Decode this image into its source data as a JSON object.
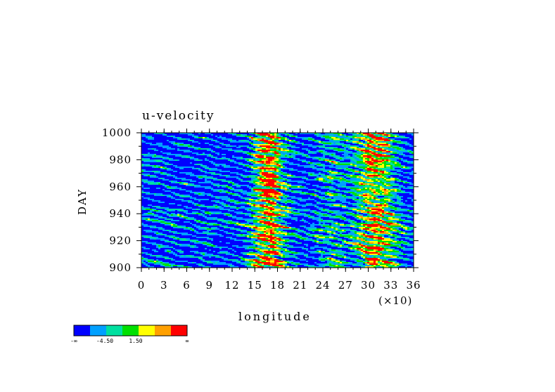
{
  "chart_data": {
    "type": "heatmap",
    "title": "u-velocity",
    "xlabel": "longitude",
    "ylabel": "DAY",
    "x_multiplier_label": "(×10)",
    "xlim": [
      0,
      36
    ],
    "ylim": [
      900,
      1000
    ],
    "x_ticks": [
      "0",
      "3",
      "6",
      "9",
      "12",
      "15",
      "18",
      "21",
      "24",
      "27",
      "30",
      "33",
      "36"
    ],
    "y_ticks": [
      "900",
      "920",
      "940",
      "960",
      "980",
      "1000"
    ],
    "colorbar": {
      "colors": [
        "#0000ff",
        "#00a0ff",
        "#00e0a0",
        "#00e000",
        "#ffff00",
        "#ffa000",
        "#ff0000"
      ],
      "labels": [
        "-∞",
        "-4.50",
        "1.50",
        "∞"
      ]
    },
    "field_description": "u-velocity Hovmoller field: westward-propagating streaks (negative values, blue) with strong positive bands (yellow/red) near longitude 15-18 and 27-33 (×10)"
  }
}
